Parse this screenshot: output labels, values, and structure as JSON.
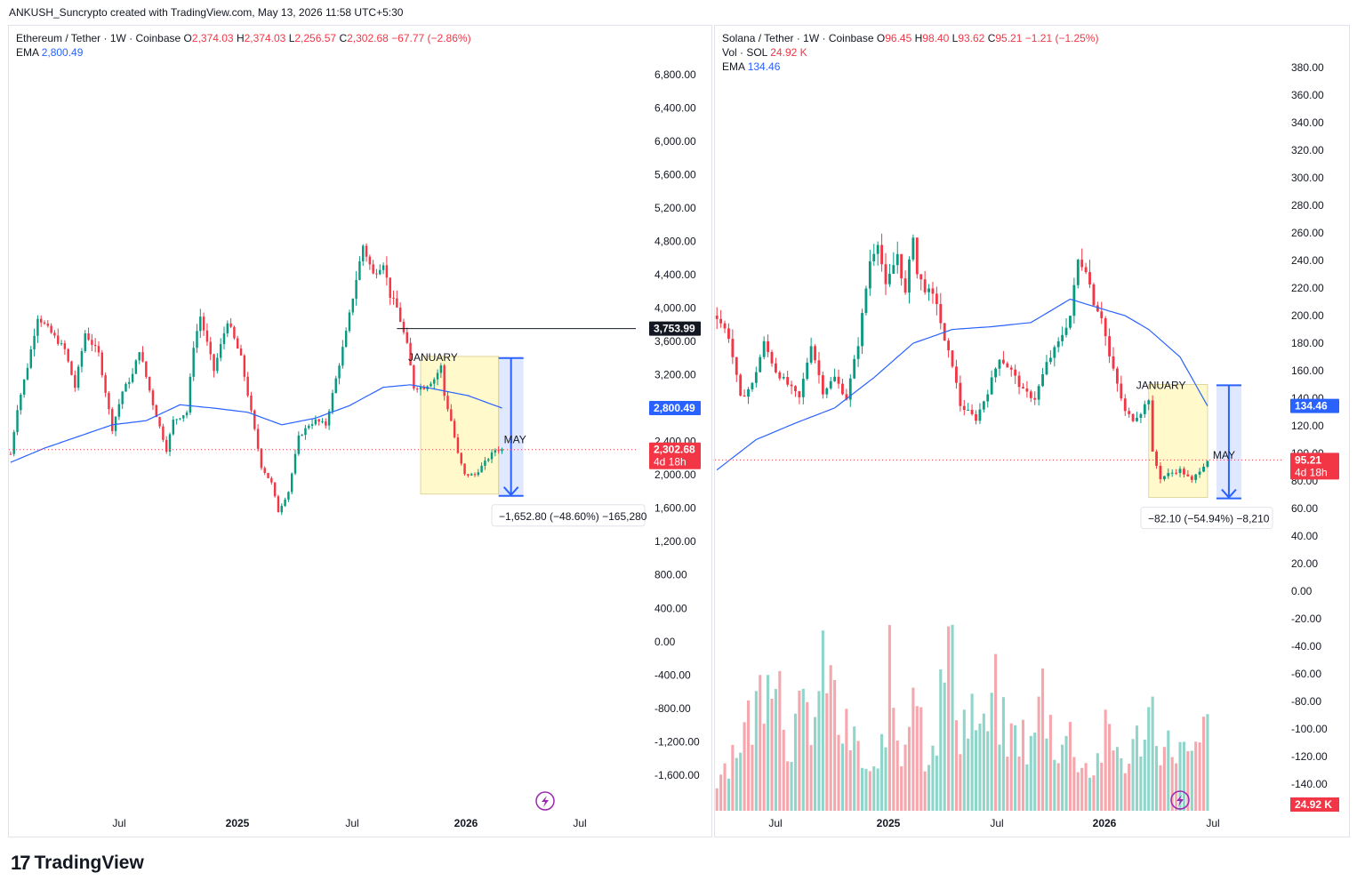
{
  "header": {
    "caption": "ANKUSH_Suncrypto created with TradingView.com, May 13, 2026 11:58 UTC+5:30"
  },
  "footer": {
    "brand": "TradingView"
  },
  "colors": {
    "up": "#089981",
    "down": "#f23645",
    "ema": "#2962ff",
    "box": "#fff9c4",
    "range": "#2962ff"
  },
  "eth": {
    "symbol": "Ethereum / Tether · 1W · Coinbase",
    "o_label": "O",
    "o": "2,374.03",
    "h_label": "H",
    "h": "2,374.03",
    "l_label": "L",
    "l": "2,256.57",
    "c_label": "C",
    "c": "2,302.68",
    "chg": "−67.77 (−2.86%)",
    "ema_label": "EMA",
    "ema_value": "2,800.49",
    "tag_level": "3,753.99",
    "tag_ema": "2,800.49",
    "tag_price": "2,302.68",
    "tag_countdown": "4d 18h",
    "box_label_start": "JANUARY",
    "box_label_end": "MAY",
    "measure": "−1,652.80 (−48.60%) −165,280"
  },
  "sol": {
    "symbol": "Solana / Tether · 1W · Coinbase",
    "o_label": "O",
    "o": "96.45",
    "h_label": "H",
    "h": "98.40",
    "l_label": "L",
    "l": "93.62",
    "c_label": "C",
    "c": "95.21",
    "chg": "−1.21 (−1.25%)",
    "vol_label": "Vol · SOL",
    "vol_value": "24.92 K",
    "ema_label": "EMA",
    "ema_value": "134.46",
    "tag_ema": "134.46",
    "tag_price": "95.21",
    "tag_countdown": "4d 18h",
    "tag_volume": "24.92 K",
    "box_label_start": "JANUARY",
    "box_label_end": "MAY",
    "measure": "−82.10 (−54.94%) −8,210"
  },
  "chart_data": [
    {
      "type": "candlestick",
      "title": "Ethereum / Tether · 1W · Coinbase",
      "ylim": [
        -1750,
        7000
      ],
      "y_ticks": [
        "6,800.00",
        "6,400.00",
        "6,000.00",
        "5,600.00",
        "5,200.00",
        "4,800.00",
        "4,400.00",
        "4,000.00",
        "3,600.00",
        "3,200.00",
        "2,800.00",
        "2,400.00",
        "2,000.00",
        "1,600.00",
        "1,200.00",
        "800.00",
        "400.00",
        "0.00",
        "-400.00",
        "-800.00",
        "-1,200.00",
        "-1,600.00"
      ],
      "x_ticks": [
        "Jul",
        "2025",
        "Jul",
        "2026",
        "Jul"
      ],
      "anchors": [
        [
          0,
          2250
        ],
        [
          2,
          2800
        ],
        [
          5,
          3300
        ],
        [
          8,
          3900
        ],
        [
          12,
          3700
        ],
        [
          16,
          3500
        ],
        [
          19,
          3050
        ],
        [
          22,
          3700
        ],
        [
          26,
          3450
        ],
        [
          30,
          2550
        ],
        [
          33,
          3000
        ],
        [
          36,
          3200
        ],
        [
          38,
          3500
        ],
        [
          42,
          2850
        ],
        [
          46,
          2300
        ],
        [
          48,
          2650
        ],
        [
          52,
          2750
        ],
        [
          54,
          3550
        ],
        [
          56,
          3900
        ],
        [
          60,
          3250
        ],
        [
          64,
          3850
        ],
        [
          68,
          3400
        ],
        [
          71,
          2750
        ],
        [
          74,
          2100
        ],
        [
          77,
          1900
        ],
        [
          79,
          1560
        ],
        [
          82,
          1800
        ],
        [
          85,
          2450
        ],
        [
          88,
          2600
        ],
        [
          90,
          2650
        ],
        [
          93,
          2600
        ],
        [
          96,
          3150
        ],
        [
          99,
          3700
        ],
        [
          102,
          4350
        ],
        [
          104,
          4750
        ],
        [
          107,
          4400
        ],
        [
          110,
          4550
        ],
        [
          112,
          4150
        ],
        [
          114,
          4000
        ],
        [
          117,
          3550
        ],
        [
          119,
          3050
        ],
        [
          122,
          3050
        ],
        [
          125,
          3150
        ],
        [
          127,
          3300
        ],
        [
          128,
          2950
        ],
        [
          130,
          2650
        ],
        [
          132,
          2250
        ],
        [
          134,
          2000
        ],
        [
          137,
          2000
        ],
        [
          140,
          2150
        ],
        [
          143,
          2300
        ],
        [
          145,
          2302.68
        ]
      ],
      "ema": [
        [
          0,
          2150
        ],
        [
          10,
          2320
        ],
        [
          20,
          2460
        ],
        [
          30,
          2600
        ],
        [
          40,
          2650
        ],
        [
          50,
          2840
        ],
        [
          60,
          2800
        ],
        [
          70,
          2750
        ],
        [
          80,
          2600
        ],
        [
          90,
          2680
        ],
        [
          100,
          2830
        ],
        [
          110,
          3050
        ],
        [
          118,
          3080
        ],
        [
          125,
          3030
        ],
        [
          135,
          2950
        ],
        [
          145,
          2800.49
        ]
      ],
      "horizontal_level": 3753.99,
      "box": {
        "start_week": 121,
        "end_week": 144,
        "top": 3420,
        "bottom": 1770
      },
      "measure_from": 3400.82,
      "measure_to": 1748.02
    },
    {
      "type": "candlestick",
      "title": "Solana / Tether · 1W · Coinbase",
      "ylim": [
        -155,
        395
      ],
      "y_ticks": [
        "380.00",
        "360.00",
        "340.00",
        "320.00",
        "300.00",
        "280.00",
        "260.00",
        "240.00",
        "220.00",
        "200.00",
        "180.00",
        "160.00",
        "140.00",
        "120.00",
        "100.00",
        "80.00",
        "60.00",
        "40.00",
        "20.00",
        "0.00",
        "-20.00",
        "-40.00",
        "-60.00",
        "-80.00",
        "-100.00",
        "-120.00",
        "-140.00"
      ],
      "x_ticks": [
        "Jul",
        "2025",
        "Jul",
        "2026",
        "Jul"
      ],
      "anchors": [
        [
          0,
          200
        ],
        [
          3,
          185
        ],
        [
          6,
          140
        ],
        [
          9,
          150
        ],
        [
          12,
          180
        ],
        [
          15,
          160
        ],
        [
          18,
          150
        ],
        [
          21,
          140
        ],
        [
          24,
          180
        ],
        [
          27,
          145
        ],
        [
          30,
          155
        ],
        [
          33,
          140
        ],
        [
          36,
          180
        ],
        [
          39,
          240
        ],
        [
          41,
          255
        ],
        [
          43,
          220
        ],
        [
          46,
          245
        ],
        [
          48,
          215
        ],
        [
          50,
          260
        ],
        [
          51,
          230
        ],
        [
          53,
          220
        ],
        [
          56,
          210
        ],
        [
          58,
          180
        ],
        [
          60,
          165
        ],
        [
          62,
          135
        ],
        [
          64,
          130
        ],
        [
          66,
          125
        ],
        [
          69,
          145
        ],
        [
          72,
          170
        ],
        [
          75,
          160
        ],
        [
          78,
          145
        ],
        [
          81,
          140
        ],
        [
          84,
          165
        ],
        [
          87,
          180
        ],
        [
          90,
          200
        ],
        [
          92,
          240
        ],
        [
          94,
          235
        ],
        [
          96,
          210
        ],
        [
          98,
          200
        ],
        [
          100,
          170
        ],
        [
          102,
          150
        ],
        [
          104,
          130
        ],
        [
          106,
          125
        ],
        [
          108,
          130
        ],
        [
          110,
          140
        ],
        [
          111,
          100
        ],
        [
          113,
          82
        ],
        [
          115,
          85
        ],
        [
          118,
          88
        ],
        [
          121,
          80
        ],
        [
          123,
          88
        ],
        [
          125,
          95.21
        ]
      ],
      "ema": [
        [
          0,
          88
        ],
        [
          10,
          110
        ],
        [
          20,
          122
        ],
        [
          30,
          133
        ],
        [
          40,
          155
        ],
        [
          50,
          180
        ],
        [
          60,
          190
        ],
        [
          70,
          192
        ],
        [
          80,
          195
        ],
        [
          90,
          212
        ],
        [
          98,
          205
        ],
        [
          104,
          200
        ],
        [
          110,
          190
        ],
        [
          118,
          170
        ],
        [
          125,
          134.46
        ]
      ],
      "volume_k": [
        [
          0,
          10
        ],
        [
          5,
          20
        ],
        [
          10,
          30
        ],
        [
          14,
          55
        ],
        [
          18,
          22
        ],
        [
          22,
          28
        ],
        [
          25,
          28
        ],
        [
          28,
          45
        ],
        [
          31,
          25
        ],
        [
          35,
          20
        ],
        [
          38,
          12
        ],
        [
          41,
          10
        ],
        [
          44,
          40
        ],
        [
          47,
          15
        ],
        [
          50,
          45
        ],
        [
          53,
          18
        ],
        [
          56,
          25
        ],
        [
          59,
          50
        ],
        [
          62,
          26
        ],
        [
          65,
          30
        ],
        [
          68,
          22
        ],
        [
          71,
          34
        ],
        [
          74,
          20
        ],
        [
          77,
          24
        ],
        [
          80,
          18
        ],
        [
          83,
          36
        ],
        [
          86,
          20
        ],
        [
          90,
          22
        ],
        [
          93,
          14
        ],
        [
          96,
          12
        ],
        [
          99,
          22
        ],
        [
          102,
          18
        ],
        [
          105,
          14
        ],
        [
          108,
          24
        ],
        [
          111,
          30
        ],
        [
          114,
          18
        ],
        [
          117,
          20
        ],
        [
          121,
          14
        ],
        [
          125,
          24.92
        ]
      ],
      "box": {
        "start_week": 110,
        "end_week": 125,
        "top": 150,
        "bottom": 68
      },
      "measure_from": 149.44,
      "measure_to": 67.34
    }
  ]
}
